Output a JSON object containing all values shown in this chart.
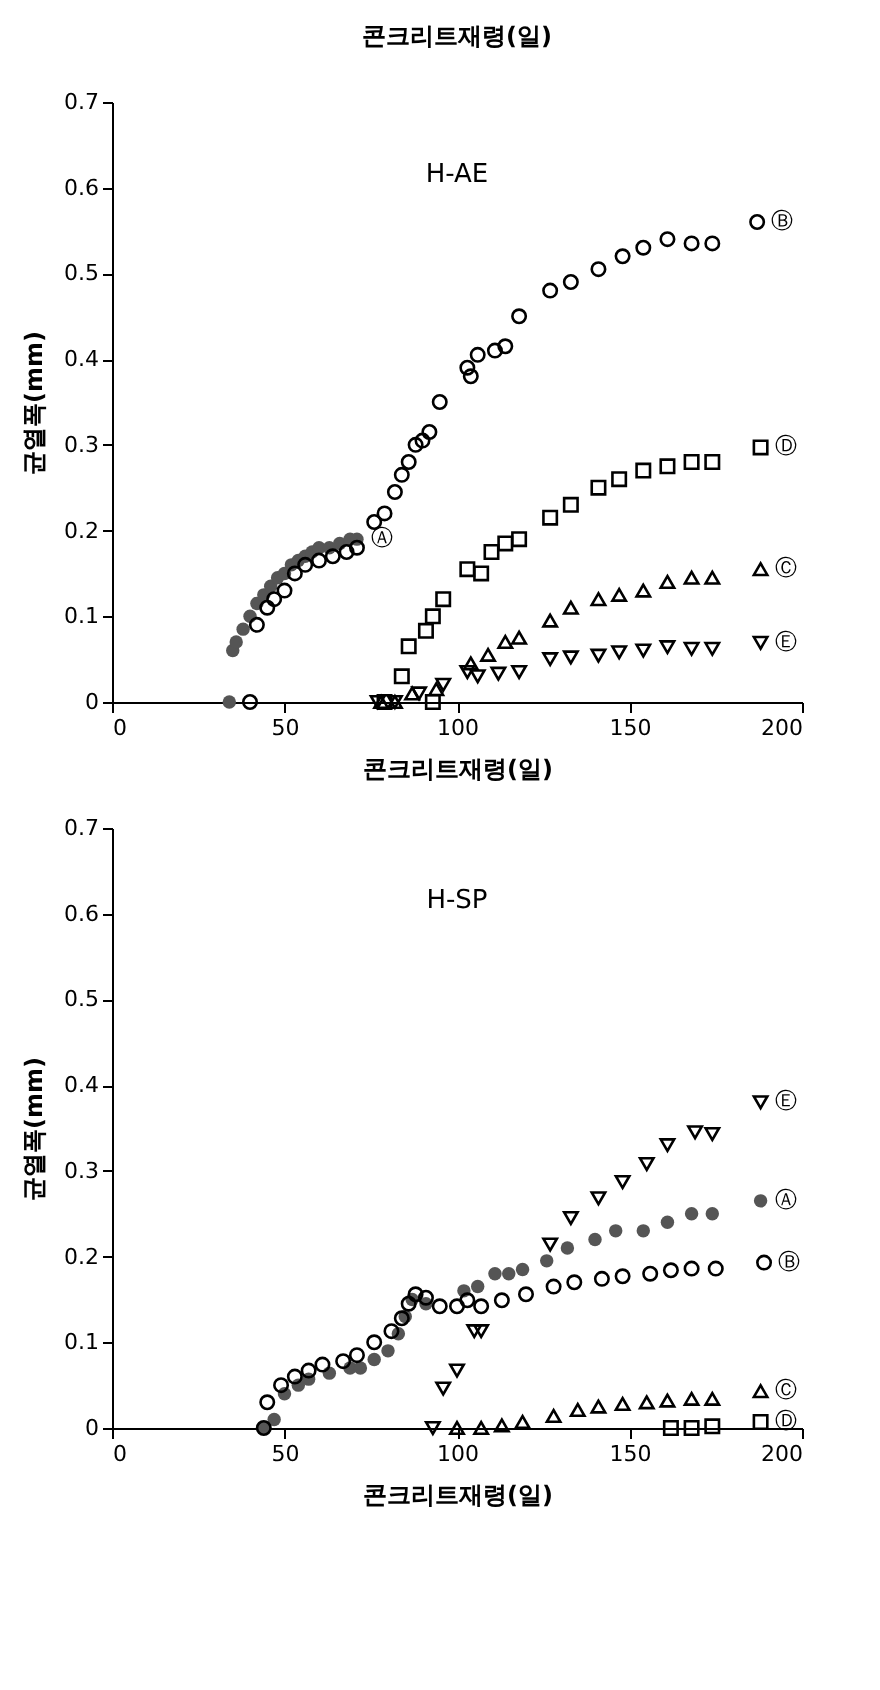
{
  "chart_data": [
    {
      "type": "scatter",
      "title": "콘크리트재령(일)",
      "annotations": [
        "H-AE"
      ],
      "xlabel": "콘크리트재령(일)",
      "ylabel": "균열폭(mm)",
      "xlim": [
        0,
        200
      ],
      "xticks": [
        0,
        50,
        100,
        150,
        200
      ],
      "ylim": [
        0,
        0.7
      ],
      "yticks": [
        0,
        0.1,
        0.2,
        0.3,
        0.4,
        0.5,
        0.6,
        0.7
      ],
      "grid": false,
      "series": [
        {
          "name": "Ⓐ",
          "color": "#555555",
          "marker": "circle",
          "x": [
            34,
            35,
            36,
            38,
            40,
            42,
            44,
            46,
            48,
            50,
            52,
            54,
            56,
            58,
            60,
            63,
            66,
            69,
            71
          ],
          "values": [
            0,
            0.06,
            0.07,
            0.085,
            0.1,
            0.115,
            0.125,
            0.135,
            0.145,
            0.15,
            0.16,
            0.165,
            0.17,
            0.175,
            0.18,
            0.18,
            0.185,
            0.19,
            0.19
          ]
        },
        {
          "name": "Ⓑ",
          "color": "#000000",
          "marker": "circle",
          "x": [
            40,
            42,
            45,
            47,
            50,
            53,
            56,
            60,
            64,
            68,
            71,
            76,
            79,
            82,
            84,
            86,
            88,
            90,
            92,
            95,
            103,
            104,
            106,
            111,
            114,
            118,
            127,
            133,
            141,
            148,
            154,
            161,
            168,
            174,
            187
          ],
          "values": [
            0,
            0.09,
            0.11,
            0.12,
            0.13,
            0.15,
            0.16,
            0.165,
            0.17,
            0.175,
            0.18,
            0.21,
            0.22,
            0.245,
            0.265,
            0.28,
            0.3,
            0.305,
            0.315,
            0.35,
            0.39,
            0.38,
            0.405,
            0.41,
            0.415,
            0.45,
            0.48,
            0.49,
            0.505,
            0.52,
            0.53,
            0.54,
            0.535,
            0.535,
            0.56
          ]
        },
        {
          "name": "Ⓒ",
          "color": "#000000",
          "marker": "triangle",
          "x": [
            78,
            82,
            87,
            94,
            104,
            109,
            114,
            118,
            127,
            133,
            141,
            147,
            154,
            161,
            168,
            174,
            188
          ],
          "values": [
            0,
            0,
            0.01,
            0.015,
            0.045,
            0.055,
            0.07,
            0.075,
            0.095,
            0.11,
            0.12,
            0.125,
            0.13,
            0.14,
            0.145,
            0.145,
            0.155
          ]
        },
        {
          "name": "Ⓓ",
          "color": "#000000",
          "marker": "square",
          "x": [
            79,
            84,
            86,
            91,
            93,
            93,
            96,
            103,
            107,
            110,
            114,
            118,
            127,
            133,
            141,
            147,
            154,
            161,
            168,
            174,
            188
          ],
          "values": [
            0,
            0.03,
            0.065,
            0.083,
            0,
            0.1,
            0.12,
            0.155,
            0.15,
            0.175,
            0.185,
            0.19,
            0.215,
            0.23,
            0.25,
            0.26,
            0.27,
            0.275,
            0.28,
            0.28,
            0.297
          ]
        },
        {
          "name": "Ⓔ",
          "color": "#000000",
          "marker": "triangle-down",
          "x": [
            77,
            82,
            89,
            96,
            103,
            106,
            112,
            118,
            127,
            133,
            141,
            147,
            154,
            161,
            168,
            174,
            188
          ],
          "values": [
            0,
            0,
            0.01,
            0.02,
            0.035,
            0.03,
            0.033,
            0.035,
            0.05,
            0.052,
            0.054,
            0.058,
            0.06,
            0.064,
            0.062,
            0.062,
            0.069
          ]
        }
      ]
    },
    {
      "type": "scatter",
      "annotations": [
        "H-SP"
      ],
      "xlabel": "콘크리트재령(일)",
      "ylabel": "균열폭(mm)",
      "xlim": [
        0,
        200
      ],
      "xticks": [
        0,
        50,
        100,
        150,
        200
      ],
      "ylim": [
        0,
        0.7
      ],
      "yticks": [
        0,
        0.1,
        0.2,
        0.3,
        0.4,
        0.5,
        0.6,
        0.7
      ],
      "grid": false,
      "series": [
        {
          "name": "Ⓐ",
          "color": "#555555",
          "marker": "circle",
          "x": [
            44,
            47,
            50,
            54,
            57,
            63,
            69,
            72,
            76,
            80,
            83,
            85,
            87,
            91,
            102,
            106,
            111,
            115,
            119,
            126,
            132,
            140,
            146,
            154,
            161,
            168,
            174,
            188
          ],
          "values": [
            0,
            0.01,
            0.04,
            0.05,
            0.057,
            0.064,
            0.07,
            0.07,
            0.08,
            0.09,
            0.11,
            0.13,
            0.15,
            0.145,
            0.16,
            0.165,
            0.18,
            0.18,
            0.185,
            0.195,
            0.21,
            0.22,
            0.23,
            0.23,
            0.24,
            0.25,
            0.25,
            0.265
          ]
        },
        {
          "name": "Ⓑ",
          "color": "#000000",
          "marker": "circle",
          "x": [
            44,
            45,
            49,
            53,
            57,
            61,
            67,
            71,
            76,
            81,
            84,
            86,
            88,
            91,
            95,
            100,
            103,
            107,
            113,
            120,
            128,
            134,
            142,
            148,
            156,
            162,
            168,
            175,
            189
          ],
          "values": [
            0,
            0.03,
            0.05,
            0.06,
            0.067,
            0.074,
            0.078,
            0.085,
            0.1,
            0.113,
            0.128,
            0.145,
            0.156,
            0.152,
            0.142,
            0.142,
            0.149,
            0.142,
            0.149,
            0.156,
            0.165,
            0.17,
            0.174,
            0.177,
            0.18,
            0.184,
            0.186,
            0.186,
            0.193
          ]
        },
        {
          "name": "Ⓒ",
          "color": "#000000",
          "marker": "triangle",
          "x": [
            100,
            107,
            113,
            119,
            128,
            135,
            141,
            148,
            155,
            161,
            168,
            174,
            188
          ],
          "values": [
            0,
            0,
            0.003,
            0.007,
            0.014,
            0.021,
            0.025,
            0.028,
            0.03,
            0.032,
            0.034,
            0.034,
            0.043
          ]
        },
        {
          "name": "Ⓓ",
          "color": "#000000",
          "marker": "square",
          "x": [
            162,
            168,
            174,
            188
          ],
          "values": [
            0,
            0,
            0.002,
            0.007
          ]
        },
        {
          "name": "Ⓔ",
          "color": "#000000",
          "marker": "triangle-down",
          "x": [
            93,
            96,
            100,
            105,
            107,
            127,
            133,
            141,
            148,
            155,
            161,
            169,
            174,
            188
          ],
          "values": [
            0,
            0.046,
            0.067,
            0.113,
            0.113,
            0.214,
            0.245,
            0.268,
            0.287,
            0.308,
            0.33,
            0.345,
            0.343,
            0.38
          ]
        }
      ]
    }
  ]
}
